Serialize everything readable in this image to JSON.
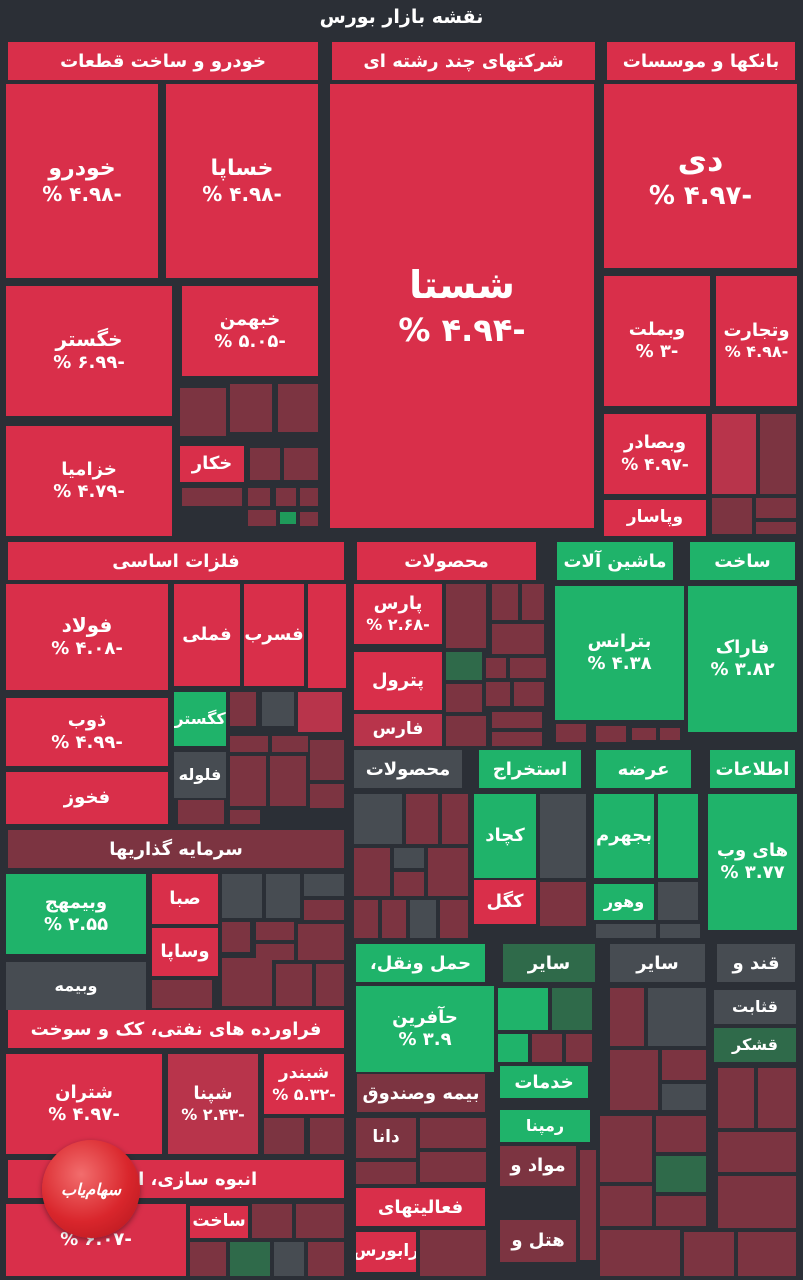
{
  "title": "نقشه بازار بورس",
  "colors": {
    "background": "#2b2f36",
    "red_strong": "#d92f4a",
    "red_mid": "#b8344b",
    "red_dim": "#7c3441",
    "gray": "#474c52",
    "green_dim": "#2f6a4a",
    "green_mid": "#1f9a5a",
    "green_strong": "#1fb36a"
  },
  "logo": {
    "text": "سهام‌یاب"
  },
  "sectors": [
    "خودرو و ساخت قطعات",
    "شرکتهای چند رشته ای",
    "بانکها و موسسات",
    "فلزات اساسی",
    "محصولات",
    "ماشین آلات",
    "ساخت",
    "محصولات",
    "استخراج",
    "عرضه",
    "اطلاعات",
    "سرمایه گذاریها",
    "حمل ونقل،",
    "سایر",
    "سایر",
    "قند و",
    "فراورده های نفتی، کک و سوخت",
    "خدمات",
    "بیمه وصندوق",
    "انبوه سازی، املاک",
    "فعالیتهای"
  ],
  "tiles": [
    {
      "name": "خودرو",
      "value": "-۴.۹۸ %"
    },
    {
      "name": "خساپا",
      "value": "-۴.۹۸ %"
    },
    {
      "name": "شستا",
      "value": "-۴.۹۴ %"
    },
    {
      "name": "دی",
      "value": "-۴.۹۷ %"
    },
    {
      "name": "خگستر",
      "value": "-۶.۹۹ %"
    },
    {
      "name": "خبهمن",
      "value": "-۵.۰۵ %"
    },
    {
      "name": "وبملت",
      "value": "-۳ %"
    },
    {
      "name": "وتجارت",
      "value": "-۴.۹۸ %"
    },
    {
      "name": "خزامیا",
      "value": "-۴.۷۹ %"
    },
    {
      "name": "خکار",
      "value": ""
    },
    {
      "name": "وبصادر",
      "value": "-۴.۹۷ %"
    },
    {
      "name": "وپاسار",
      "value": ""
    },
    {
      "name": "فولاد",
      "value": "-۴.۰۸ %"
    },
    {
      "name": "فملی",
      "value": ""
    },
    {
      "name": "فسرب",
      "value": ""
    },
    {
      "name": "پارس",
      "value": "-۲.۶۸ %"
    },
    {
      "name": "بترانس",
      "value": "۴.۳۸ %"
    },
    {
      "name": "فاراک",
      "value": "۳.۸۲ %"
    },
    {
      "name": "پترول",
      "value": ""
    },
    {
      "name": "فارس",
      "value": ""
    },
    {
      "name": "ذوب",
      "value": "-۴.۹۹ %"
    },
    {
      "name": "کگستر",
      "value": ""
    },
    {
      "name": "فلوله",
      "value": ""
    },
    {
      "name": "فخوز",
      "value": ""
    },
    {
      "name": "کچاد",
      "value": ""
    },
    {
      "name": "بجهرم",
      "value": ""
    },
    {
      "name": "های وب",
      "value": "۳.۷۷ %"
    },
    {
      "name": "کگل",
      "value": ""
    },
    {
      "name": "وهور",
      "value": ""
    },
    {
      "name": "وبیمهج",
      "value": "۲.۵۵ %"
    },
    {
      "name": "صبا",
      "value": ""
    },
    {
      "name": "وساپا",
      "value": ""
    },
    {
      "name": "وبیمه",
      "value": ""
    },
    {
      "name": "حآفرین",
      "value": "۳.۹ %"
    },
    {
      "name": "قثابت",
      "value": ""
    },
    {
      "name": "قشکر",
      "value": ""
    },
    {
      "name": "شتران",
      "value": "-۴.۹۷ %"
    },
    {
      "name": "شپنا",
      "value": "-۲.۴۳ %"
    },
    {
      "name": "شبندر",
      "value": "-۵.۳۲ %"
    },
    {
      "name": "رمپنا",
      "value": ""
    },
    {
      "name": "مواد و",
      "value": ""
    },
    {
      "name": "دانا",
      "value": ""
    },
    {
      "name": "ساخت",
      "value": ""
    },
    {
      "name": "هتل و",
      "value": ""
    },
    {
      "name": "رابورس",
      "value": ""
    },
    {
      "name": "",
      "value": "-۶.۰۷ %"
    }
  ]
}
